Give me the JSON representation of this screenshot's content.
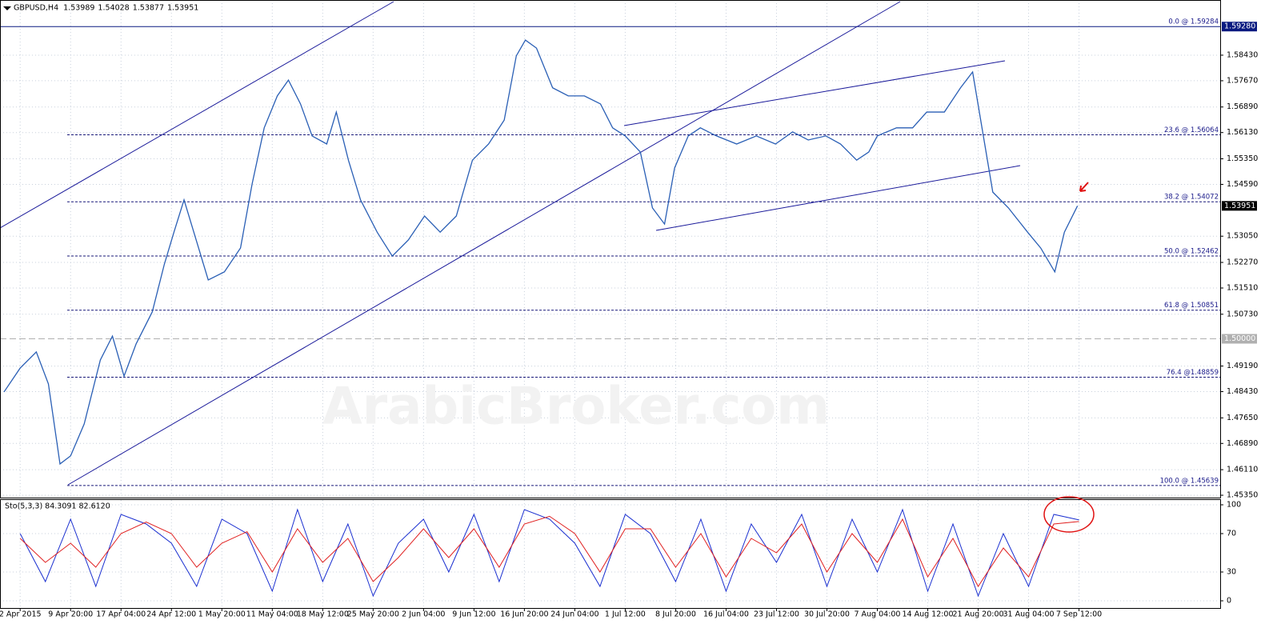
{
  "chart_data": {
    "type": "line",
    "title": "GBPUSD,H4",
    "quote": [
      1.53989,
      1.54028,
      1.53877,
      1.53951
    ],
    "watermark": "ArabicBroker.com",
    "grid": true,
    "xlim": [
      -0.4,
      23.8
    ],
    "xticks": [
      {
        "value": 0,
        "label": "2 Apr 2015"
      },
      {
        "value": 1,
        "label": "9 Apr 20:00"
      },
      {
        "value": 2,
        "label": "17 Apr 04:00"
      },
      {
        "value": 3,
        "label": "24 Apr 12:00"
      },
      {
        "value": 4,
        "label": "1 May 20:00"
      },
      {
        "value": 5,
        "label": "11 May 04:00"
      },
      {
        "value": 6,
        "label": "18 May 12:00"
      },
      {
        "value": 7,
        "label": "25 May 20:00"
      },
      {
        "value": 8,
        "label": "2 Jun 04:00"
      },
      {
        "value": 9,
        "label": "9 Jun 12:00"
      },
      {
        "value": 10,
        "label": "16 Jun 20:00"
      },
      {
        "value": 11,
        "label": "24 Jun 04:00"
      },
      {
        "value": 12,
        "label": "1 Jul 12:00"
      },
      {
        "value": 13,
        "label": "8 Jul 20:00"
      },
      {
        "value": 14,
        "label": "16 Jul 04:00"
      },
      {
        "value": 15,
        "label": "23 Jul 12:00"
      },
      {
        "value": 16,
        "label": "30 Jul 20:00"
      },
      {
        "value": 17,
        "label": "7 Aug 04:00"
      },
      {
        "value": 18,
        "label": "14 Aug 12:00"
      },
      {
        "value": 19,
        "label": "21 Aug 20:00"
      },
      {
        "value": 20,
        "label": "31 Aug 04:00"
      },
      {
        "value": 21,
        "label": "7 Sep 12:00"
      }
    ],
    "ylim": [
      1.4528,
      1.6007
    ],
    "yticks": [
      {
        "value": 1.4535,
        "label": "1.45350"
      },
      {
        "value": 1.4611,
        "label": "1.46110"
      },
      {
        "value": 1.4689,
        "label": "1.46890"
      },
      {
        "value": 1.4765,
        "label": "1.47650"
      },
      {
        "value": 1.4843,
        "label": "1.48430"
      },
      {
        "value": 1.4919,
        "label": "1.49190"
      },
      {
        "value": 1.5073,
        "label": "1.50730"
      },
      {
        "value": 1.5151,
        "label": "1.51510"
      },
      {
        "value": 1.5227,
        "label": "1.52270"
      },
      {
        "value": 1.5305,
        "label": "1.53050"
      },
      {
        "value": 1.5459,
        "label": "1.54590"
      },
      {
        "value": 1.5535,
        "label": "1.55350"
      },
      {
        "value": 1.5613,
        "label": "1.56130"
      },
      {
        "value": 1.5689,
        "label": "1.56890"
      },
      {
        "value": 1.5767,
        "label": "1.57670"
      },
      {
        "value": 1.5843,
        "label": "1.58430"
      }
    ],
    "price_marks": [
      {
        "value": 1.5928,
        "label": "1.59280",
        "color": "#0a1a80"
      },
      {
        "value": 1.5,
        "label": "1.50000",
        "color": "#b0b0b0"
      },
      {
        "value": 1.53951,
        "label": "1.53951",
        "color": "#000000"
      }
    ],
    "levels": [
      {
        "label": "0.0 @ 1.59284",
        "value": 1.59284
      },
      {
        "label": "23.6 @ 1.56064",
        "value": 1.56064
      },
      {
        "label": "38.2 @ 1.54072",
        "value": 1.54072
      },
      {
        "label": "50.0 @ 1.52462",
        "value": 1.52462
      },
      {
        "label": "61.8 @ 1.50851",
        "value": 1.50851
      },
      {
        "label": "76.4 @1.48859",
        "value": 1.48859
      },
      {
        "label": "100.0 @ 1.45639",
        "value": 1.45639
      }
    ],
    "x": [
      -0.32,
      0,
      0.32,
      0.56,
      0.79,
      1.0,
      1.27,
      1.59,
      1.83,
      2.06,
      2.3,
      2.62,
      2.86,
      3.05,
      3.25,
      3.49,
      3.73,
      4.05,
      4.37,
      4.6,
      4.84,
      5.1,
      5.32,
      5.56,
      5.79,
      6.08,
      6.27,
      6.51,
      6.75,
      7.08,
      7.38,
      7.7,
      8.02,
      8.33,
      8.65,
      8.97,
      9.29,
      9.6,
      9.84,
      10.02,
      10.24,
      10.56,
      10.87,
      11.19,
      11.51,
      11.75,
      12.0,
      12.3,
      12.54,
      12.78,
      12.98,
      13.25,
      13.49,
      13.81,
      14.21,
      14.6,
      14.98,
      15.32,
      15.63,
      15.98,
      16.27,
      16.59,
      16.83,
      17.0,
      17.38,
      17.7,
      17.98,
      18.33,
      18.65,
      18.89,
      19.05,
      19.29,
      19.6,
      19.98,
      20.24,
      20.52,
      20.71,
      20.97
    ],
    "series": [
      {
        "color": "#2a5fb5",
        "values": [
          1.4842,
          1.4913,
          1.4961,
          1.4866,
          1.4628,
          1.4652,
          1.4747,
          1.4937,
          1.5008,
          1.4889,
          1.4985,
          1.508,
          1.5222,
          1.5317,
          1.5413,
          1.5294,
          1.5175,
          1.5199,
          1.527,
          1.546,
          1.5627,
          1.5722,
          1.5769,
          1.5698,
          1.5603,
          1.5579,
          1.5674,
          1.5531,
          1.5413,
          1.5317,
          1.5246,
          1.5294,
          1.5365,
          1.5317,
          1.5365,
          1.5531,
          1.5579,
          1.565,
          1.5841,
          1.5888,
          1.5864,
          1.5746,
          1.5722,
          1.5722,
          1.5698,
          1.5627,
          1.5603,
          1.5555,
          1.5389,
          1.5341,
          1.5508,
          1.5603,
          1.5627,
          1.5603,
          1.5579,
          1.5603,
          1.5579,
          1.5615,
          1.5591,
          1.5603,
          1.5579,
          1.5531,
          1.5555,
          1.5603,
          1.5627,
          1.5627,
          1.5674,
          1.5674,
          1.5746,
          1.5793,
          1.565,
          1.5436,
          1.5389,
          1.5317,
          1.527,
          1.5199,
          1.5317,
          1.53951
        ]
      }
    ],
    "indicator": {
      "title": "Sto(5,3,3) 84.3091 82.6120",
      "ylim": [
        -7.5,
        105
      ],
      "yticks": [
        0,
        30,
        70,
        100
      ],
      "x": [
        0,
        0.5,
        1,
        1.5,
        2,
        2.5,
        3,
        3.5,
        4,
        4.5,
        5,
        5.5,
        6,
        6.5,
        7,
        7.5,
        8,
        8.5,
        9,
        9.5,
        10,
        10.5,
        11,
        11.5,
        12,
        12.5,
        13,
        13.5,
        14,
        14.5,
        15,
        15.5,
        16,
        16.5,
        17,
        17.5,
        18,
        18.5,
        19,
        19.5,
        20,
        20.5,
        21
      ],
      "series": [
        {
          "color": "#1a2fd0",
          "values": [
            70,
            20,
            85,
            15,
            90,
            80,
            60,
            15,
            85,
            70,
            10,
            95,
            20,
            80,
            5,
            60,
            85,
            30,
            90,
            20,
            95,
            85,
            60,
            15,
            90,
            70,
            20,
            85,
            10,
            80,
            40,
            90,
            15,
            85,
            30,
            95,
            10,
            80,
            5,
            70,
            15,
            90,
            84.3
          ]
        },
        {
          "color": "#e02020",
          "values": [
            65,
            40,
            60,
            35,
            70,
            82,
            70,
            35,
            60,
            72,
            30,
            75,
            40,
            65,
            20,
            45,
            75,
            45,
            75,
            35,
            80,
            88,
            70,
            30,
            75,
            75,
            35,
            70,
            25,
            65,
            50,
            80,
            30,
            70,
            40,
            85,
            25,
            65,
            15,
            55,
            25,
            80,
            82.61
          ]
        }
      ]
    }
  }
}
